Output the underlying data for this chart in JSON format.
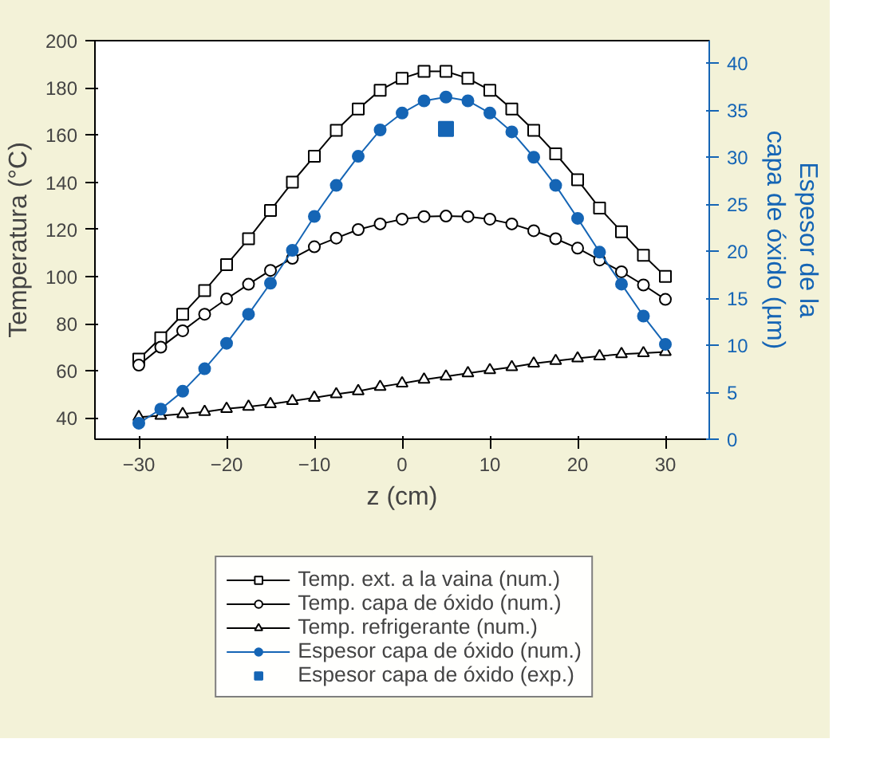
{
  "chart_data": {
    "type": "line",
    "xlabel": "z (cm)",
    "ylabel": "Temperatura (°C)",
    "y2label": "Espesor de la\ncapa de óxido (µm)",
    "x": [
      -30,
      -27.5,
      -25,
      -22.5,
      -20,
      -17.5,
      -15,
      -12.5,
      -10,
      -7.5,
      -5,
      -2.5,
      0,
      2.5,
      5,
      7.5,
      10,
      12.5,
      15,
      17.5,
      20,
      22.5,
      25,
      27.5,
      30
    ],
    "xlim": [
      -35,
      35
    ],
    "xticks": [
      -30,
      -20,
      -10,
      0,
      10,
      20,
      30
    ],
    "ylim": [
      31,
      200
    ],
    "yticks": [
      40,
      60,
      80,
      100,
      120,
      140,
      160,
      180,
      200
    ],
    "y2lim": [
      0,
      42.4
    ],
    "y2ticks": [
      0,
      5,
      10,
      15,
      20,
      25,
      30,
      35,
      40
    ],
    "grid": false,
    "legend": "bottom",
    "line_style": "solid",
    "series": [
      {
        "name": "Temp. ext. a la vaina (num.)",
        "color": "#000000",
        "marker": "square",
        "values": [
          65,
          74,
          84,
          94,
          105,
          116,
          128,
          140,
          151,
          162,
          171,
          179,
          184,
          187,
          187,
          184,
          179,
          171,
          162,
          152,
          141,
          129,
          119,
          109,
          100
        ]
      },
      {
        "name": "Temp. capa de óxido (num.)",
        "color": "#000000",
        "marker": "circle",
        "values": [
          62.4,
          70,
          77,
          84,
          90.5,
          96.7,
          102.6,
          107.7,
          112.6,
          116.3,
          119.9,
          122.3,
          124.3,
          125.4,
          125.6,
          125.4,
          124.3,
          122.3,
          119.4,
          116,
          112,
          107,
          102,
          96.4,
          90.3
        ]
      },
      {
        "name": "Temp. refrigerante (num.)",
        "color": "#000000",
        "marker": "triangle",
        "values": [
          40.4,
          41,
          41.7,
          42.6,
          43.9,
          44.8,
          45.9,
          47.2,
          48.6,
          50.1,
          51.4,
          53.2,
          54.7,
          56.3,
          57.6,
          59,
          60.3,
          61.6,
          63.1,
          64.2,
          65.3,
          66.2,
          67.1,
          67.5,
          68
        ]
      },
      {
        "name": "Espesor capa de óxido (num.)",
        "color": "#1565b5",
        "marker": "circle",
        "axis": "y2",
        "values": [
          1.7,
          3.2,
          5.1,
          7.5,
          10.2,
          13.3,
          16.6,
          20.1,
          23.7,
          27,
          30.1,
          32.9,
          34.7,
          36,
          36.4,
          36,
          34.7,
          32.7,
          30,
          27,
          23.5,
          19.9,
          16.5,
          13.1,
          10.1
        ]
      },
      {
        "name": "Espesor capa de óxido (exp.)",
        "type": "scatter",
        "color": "#1565b5",
        "marker": "square",
        "axis": "y2",
        "x": [
          5
        ],
        "values": [
          33
        ]
      }
    ]
  }
}
